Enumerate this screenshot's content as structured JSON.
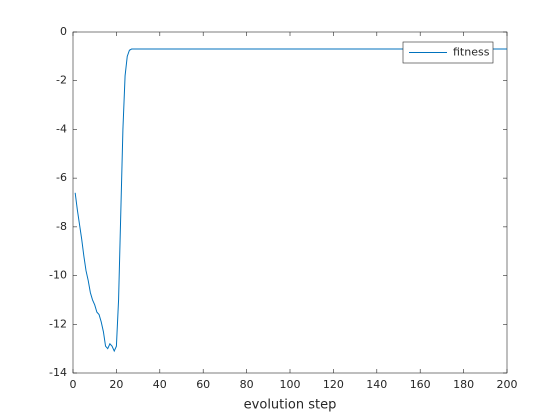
{
  "chart_data": {
    "type": "line",
    "xlabel": "evolution step",
    "x": [
      1,
      2,
      3,
      4,
      5,
      6,
      7,
      8,
      9,
      10,
      11,
      12,
      13,
      14,
      15,
      16,
      17,
      18,
      19,
      20,
      21,
      22,
      23,
      24,
      25,
      26,
      27,
      200
    ],
    "series": [
      {
        "name": "fitness",
        "color": "#0072bd",
        "values": [
          -6.6,
          -7.3,
          -7.9,
          -8.5,
          -9.2,
          -9.8,
          -10.2,
          -10.7,
          -11.0,
          -11.2,
          -11.5,
          -11.6,
          -11.9,
          -12.3,
          -12.9,
          -13.0,
          -12.8,
          -12.9,
          -13.1,
          -12.9,
          -11.0,
          -7.5,
          -4.0,
          -1.8,
          -1.0,
          -0.75,
          -0.7,
          -0.7
        ]
      }
    ],
    "xlim": [
      0,
      200
    ],
    "xticks": [
      0,
      20,
      40,
      60,
      80,
      100,
      120,
      140,
      160,
      180,
      200
    ],
    "ylim": [
      -14,
      0
    ],
    "yticks": [
      -14,
      -12,
      -10,
      -8,
      -6,
      -4,
      -2,
      0
    ],
    "legend": "upper right"
  }
}
